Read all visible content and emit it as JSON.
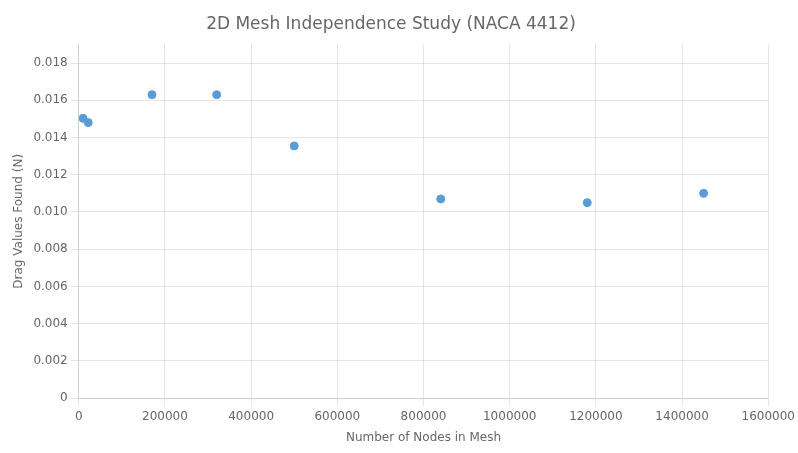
{
  "chart_data": {
    "type": "scatter",
    "title": "2D Mesh Independence Study (NACA 4412)",
    "xlabel": "Number of Nodes in Mesh",
    "ylabel": "Drag Values Found (N)",
    "x": [
      10000,
      22000,
      170000,
      320000,
      500000,
      840000,
      1180000,
      1450000
    ],
    "values": [
      0.01503,
      0.0148,
      0.0163,
      0.0163,
      0.01355,
      0.0107,
      0.0105,
      0.011
    ],
    "color": "#5B9BD5",
    "xlim": [
      0,
      1600000
    ],
    "xticks": [
      0,
      200000,
      400000,
      600000,
      800000,
      1000000,
      1200000,
      1400000,
      1600000
    ],
    "ylim": [
      0,
      0.019
    ],
    "yticks": [
      0,
      0.002,
      0.004,
      0.006,
      0.008,
      {
        "value": 0.01,
        "label": "0.010"
      },
      0.012,
      0.014,
      0.016,
      0.018
    ],
    "grid": true
  }
}
